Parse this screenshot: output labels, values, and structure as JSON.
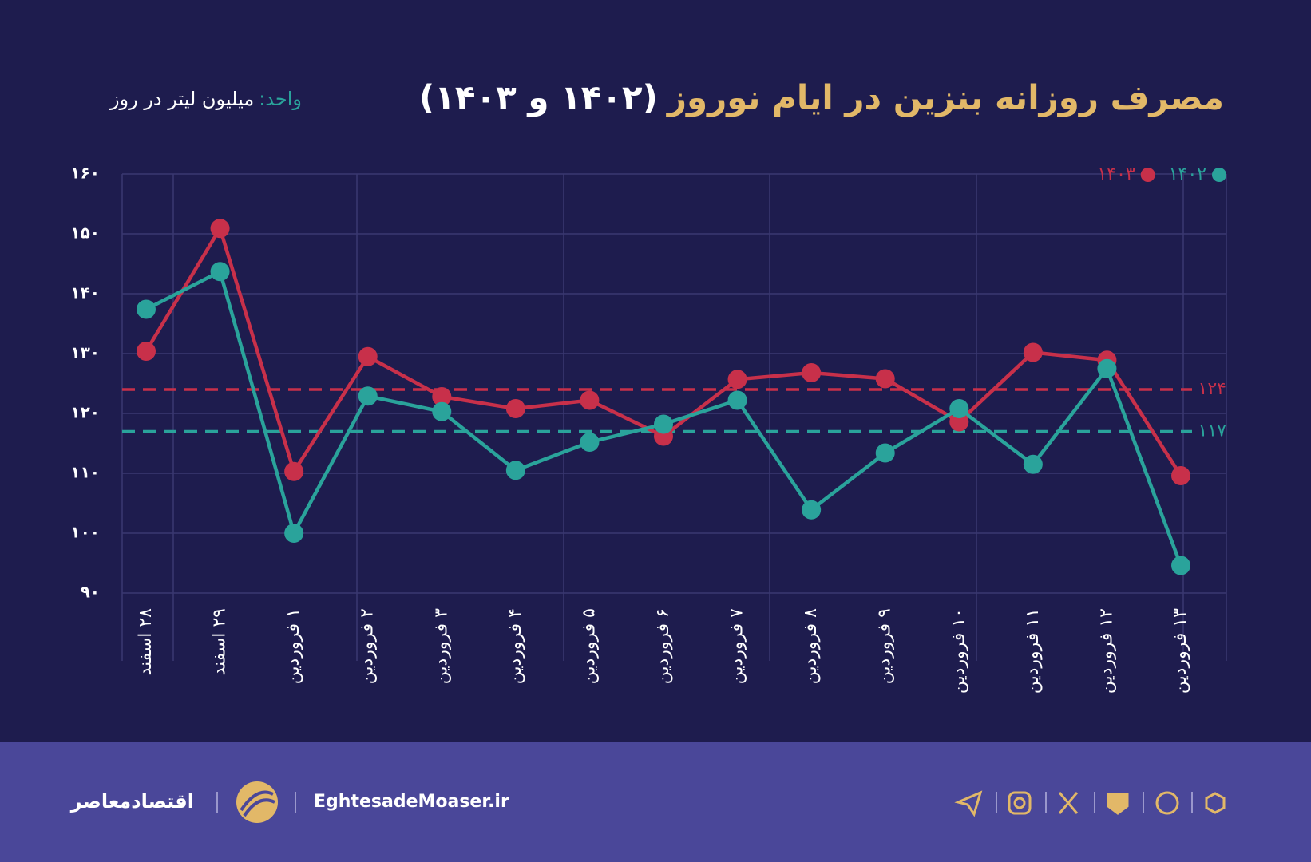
{
  "chart_data": {
    "type": "line",
    "title": "مصرف روزانه بنزین در ایام نوروز",
    "title_years": "(۱۴۰۲ و ۱۴۰۳)",
    "unit_label": "واحد:",
    "unit": "میلیون لیتر در روز",
    "categories": [
      "۲۸ اسفند",
      "۲۹ اسفند",
      "۱ فروردین",
      "۲ فروردین",
      "۳ فروردین",
      "۴ فروردین",
      "۵ فروردین",
      "۶ فروردین",
      "۷ فروردین",
      "۸ فروردین",
      "۹ فروردین",
      "۱۰ فروردین",
      "۱۱ فروردین",
      "۱۲ فروردین",
      "۱۳ فروردین"
    ],
    "series": [
      {
        "name": "۱۴۰۲",
        "color": "#2aa39b",
        "values": [
          137.4,
          143.7,
          100,
          122.9,
          120.3,
          110.5,
          115.2,
          118.2,
          122.2,
          103.9,
          113.4,
          120.8,
          111.5,
          127.5,
          94.6
        ]
      },
      {
        "name": "۱۴۰۳",
        "color": "#c8304a",
        "values": [
          130.4,
          150.9,
          110.3,
          129.5,
          122.8,
          120.8,
          122.2,
          116.2,
          125.7,
          126.8,
          125.8,
          118.6,
          130.2,
          128.9,
          109.6
        ]
      }
    ],
    "reference_lines": [
      {
        "value": 124,
        "label": "۱۲۴",
        "color": "#c8304a"
      },
      {
        "value": 117,
        "label": "۱۱۷",
        "color": "#2aa39b"
      }
    ],
    "ylim": [
      90,
      160
    ],
    "yticks": [
      {
        "value": 90,
        "label": "۹۰"
      },
      {
        "value": 100,
        "label": "۱۰۰"
      },
      {
        "value": 110,
        "label": "۱۱۰"
      },
      {
        "value": 120,
        "label": "۱۲۰"
      },
      {
        "value": 130,
        "label": "۱۳۰"
      },
      {
        "value": 140,
        "label": "۱۴۰"
      },
      {
        "value": 150,
        "label": "۱۵۰"
      },
      {
        "value": 160,
        "label": "۱۶۰"
      }
    ],
    "grid": true,
    "legend": "top-right"
  },
  "footer": {
    "site": "EghtesadeMoaser.ir",
    "brand": "اقتصادمعاصر"
  }
}
